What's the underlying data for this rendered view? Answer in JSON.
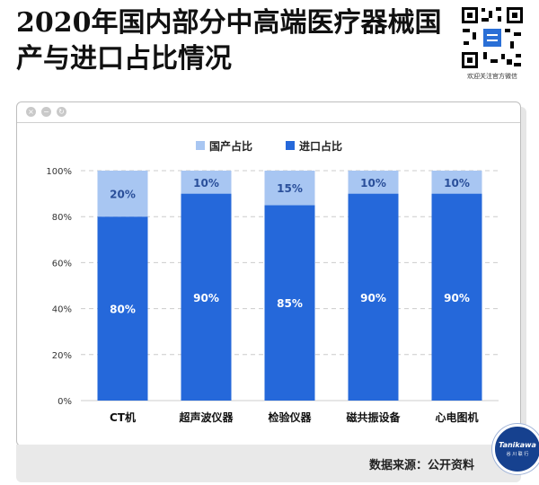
{
  "headline": "2020年国内部分中高端医疗器械国产与进口占比情况",
  "qr": {
    "caption": "欢迎关注官方微信"
  },
  "source": "数据来源：公开资料",
  "badge": {
    "top": "Tanikawa",
    "bottom": "谷 川 联 行"
  },
  "window_controls": [
    "×",
    "−",
    "↻"
  ],
  "colors": {
    "domestic": "#a8c6f2",
    "imported": "#2568da",
    "badge": "#16418f"
  },
  "chart_data": {
    "type": "bar",
    "stacked": true,
    "categories": [
      "CT机",
      "超声波仪器",
      "检验仪器",
      "磁共振设备",
      "心电图机"
    ],
    "series": [
      {
        "name": "进口占比",
        "values": [
          80,
          90,
          85,
          90,
          90
        ],
        "labels": [
          "80%",
          "90%",
          "85%",
          "90%",
          "90%"
        ]
      },
      {
        "name": "国产占比",
        "values": [
          20,
          10,
          15,
          10,
          10
        ],
        "labels": [
          "20%",
          "10%",
          "15%",
          "10%",
          "10%"
        ]
      }
    ],
    "yticks": [
      "0%",
      "20%",
      "40%",
      "60%",
      "80%",
      "100%"
    ],
    "ylim": [
      0,
      100
    ],
    "grid": true,
    "legend": [
      "国产占比",
      "进口占比"
    ],
    "legend_position": "top"
  }
}
